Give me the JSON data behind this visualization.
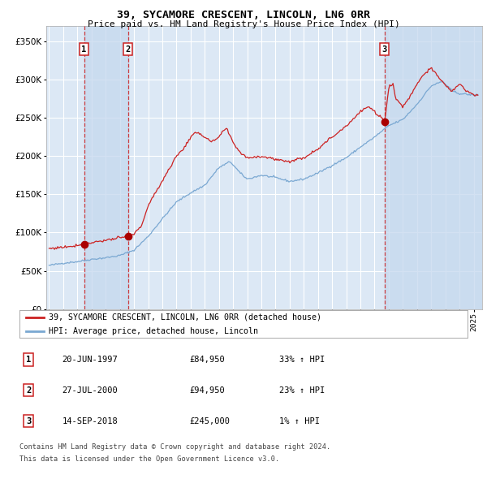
{
  "title": "39, SYCAMORE CRESCENT, LINCOLN, LN6 0RR",
  "subtitle": "Price paid vs. HM Land Registry's House Price Index (HPI)",
  "legend_line1": "39, SYCAMORE CRESCENT, LINCOLN, LN6 0RR (detached house)",
  "legend_line2": "HPI: Average price, detached house, Lincoln",
  "footer1": "Contains HM Land Registry data © Crown copyright and database right 2024.",
  "footer2": "This data is licensed under the Open Government Licence v3.0.",
  "transactions": [
    {
      "num": 1,
      "date_str": "20-JUN-1997",
      "date_x": 1997.47,
      "price": 84950,
      "pct": "33%",
      "dir": "↑"
    },
    {
      "num": 2,
      "date_str": "27-JUL-2000",
      "date_x": 2000.57,
      "price": 94950,
      "pct": "23%",
      "dir": "↑"
    },
    {
      "num": 3,
      "date_str": "14-SEP-2018",
      "date_x": 2018.7,
      "price": 245000,
      "pct": "1%",
      "dir": "↑"
    }
  ],
  "hpi_color": "#7aa8d2",
  "price_color": "#cc2222",
  "dot_color": "#aa0000",
  "bg_color": "#dce8f5",
  "shade_color": "#c5d8ee",
  "grid_color": "#ffffff",
  "shade_regions": [
    {
      "x_start": 1997.47,
      "x_end": 2000.57
    },
    {
      "x_start": 2018.7,
      "x_end": 2025.6
    }
  ],
  "ylim": [
    0,
    370000
  ],
  "xlim_start": 1994.8,
  "xlim_end": 2025.6,
  "hpi_keypoints": [
    [
      1995.0,
      57000
    ],
    [
      1996.0,
      60000
    ],
    [
      1997.0,
      62000
    ],
    [
      1998.0,
      65000
    ],
    [
      1999.0,
      67000
    ],
    [
      2000.0,
      70000
    ],
    [
      2001.0,
      77000
    ],
    [
      2002.0,
      95000
    ],
    [
      2003.0,
      118000
    ],
    [
      2004.0,
      140000
    ],
    [
      2005.0,
      152000
    ],
    [
      2006.0,
      162000
    ],
    [
      2007.0,
      185000
    ],
    [
      2007.8,
      193000
    ],
    [
      2008.5,
      178000
    ],
    [
      2009.0,
      170000
    ],
    [
      2010.0,
      175000
    ],
    [
      2011.0,
      172000
    ],
    [
      2012.0,
      167000
    ],
    [
      2013.0,
      170000
    ],
    [
      2014.0,
      178000
    ],
    [
      2015.0,
      188000
    ],
    [
      2016.0,
      198000
    ],
    [
      2017.0,
      212000
    ],
    [
      2018.0,
      225000
    ],
    [
      2019.0,
      240000
    ],
    [
      2020.0,
      248000
    ],
    [
      2021.0,
      268000
    ],
    [
      2022.0,
      292000
    ],
    [
      2022.8,
      298000
    ],
    [
      2023.5,
      285000
    ],
    [
      2024.0,
      282000
    ],
    [
      2025.0,
      280000
    ]
  ],
  "price_keypoints": [
    [
      1995.0,
      79000
    ],
    [
      1995.5,
      80000
    ],
    [
      1996.0,
      81000
    ],
    [
      1996.5,
      82000
    ],
    [
      1997.0,
      83500
    ],
    [
      1997.47,
      84950
    ],
    [
      1998.0,
      87000
    ],
    [
      1999.0,
      90000
    ],
    [
      2000.0,
      93000
    ],
    [
      2000.57,
      94950
    ],
    [
      2001.0,
      98000
    ],
    [
      2001.5,
      108000
    ],
    [
      2002.0,
      135000
    ],
    [
      2003.0,
      168000
    ],
    [
      2004.0,
      200000
    ],
    [
      2004.5,
      210000
    ],
    [
      2005.0,
      225000
    ],
    [
      2005.5,
      232000
    ],
    [
      2006.0,
      225000
    ],
    [
      2006.5,
      218000
    ],
    [
      2007.0,
      225000
    ],
    [
      2007.5,
      237000
    ],
    [
      2008.0,
      218000
    ],
    [
      2008.5,
      205000
    ],
    [
      2009.0,
      198000
    ],
    [
      2010.0,
      200000
    ],
    [
      2011.0,
      196000
    ],
    [
      2012.0,
      193000
    ],
    [
      2013.0,
      198000
    ],
    [
      2014.0,
      210000
    ],
    [
      2015.0,
      225000
    ],
    [
      2016.0,
      240000
    ],
    [
      2017.0,
      258000
    ],
    [
      2017.5,
      265000
    ],
    [
      2018.0,
      258000
    ],
    [
      2018.5,
      250000
    ],
    [
      2018.7,
      245000
    ],
    [
      2019.0,
      290000
    ],
    [
      2019.3,
      295000
    ],
    [
      2019.5,
      275000
    ],
    [
      2020.0,
      265000
    ],
    [
      2020.5,
      278000
    ],
    [
      2021.0,
      295000
    ],
    [
      2021.5,
      308000
    ],
    [
      2022.0,
      315000
    ],
    [
      2022.3,
      308000
    ],
    [
      2022.8,
      298000
    ],
    [
      2023.0,
      292000
    ],
    [
      2023.5,
      285000
    ],
    [
      2024.0,
      295000
    ],
    [
      2024.5,
      285000
    ],
    [
      2025.0,
      280000
    ]
  ]
}
